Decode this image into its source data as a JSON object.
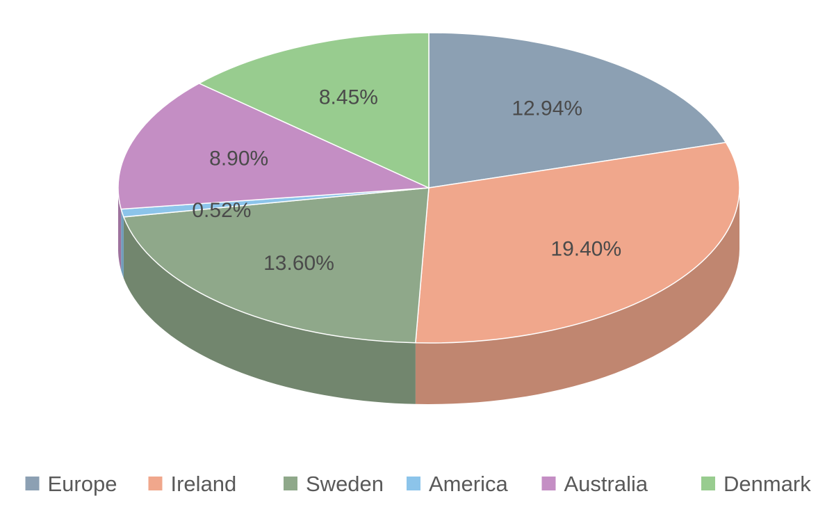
{
  "chart_data": {
    "type": "pie",
    "style": "3d",
    "legend": "bottom",
    "series": [
      {
        "name": "Europe",
        "value": 12.94,
        "label": "12.94%",
        "color": "#8ca0b3"
      },
      {
        "name": "Ireland",
        "value": 19.4,
        "label": "19.40%",
        "color": "#f0a78c"
      },
      {
        "name": "Sweden",
        "value": 13.6,
        "label": "13.60%",
        "color": "#8fa88a"
      },
      {
        "name": "America",
        "value": 0.52,
        "label": "0.52%",
        "color": "#8cc4ea"
      },
      {
        "name": "Australia",
        "value": 8.9,
        "label": "8.90%",
        "color": "#c48ec4"
      },
      {
        "name": "Denmark",
        "value": 8.45,
        "label": "8.45%",
        "color": "#98cc8f"
      }
    ]
  }
}
